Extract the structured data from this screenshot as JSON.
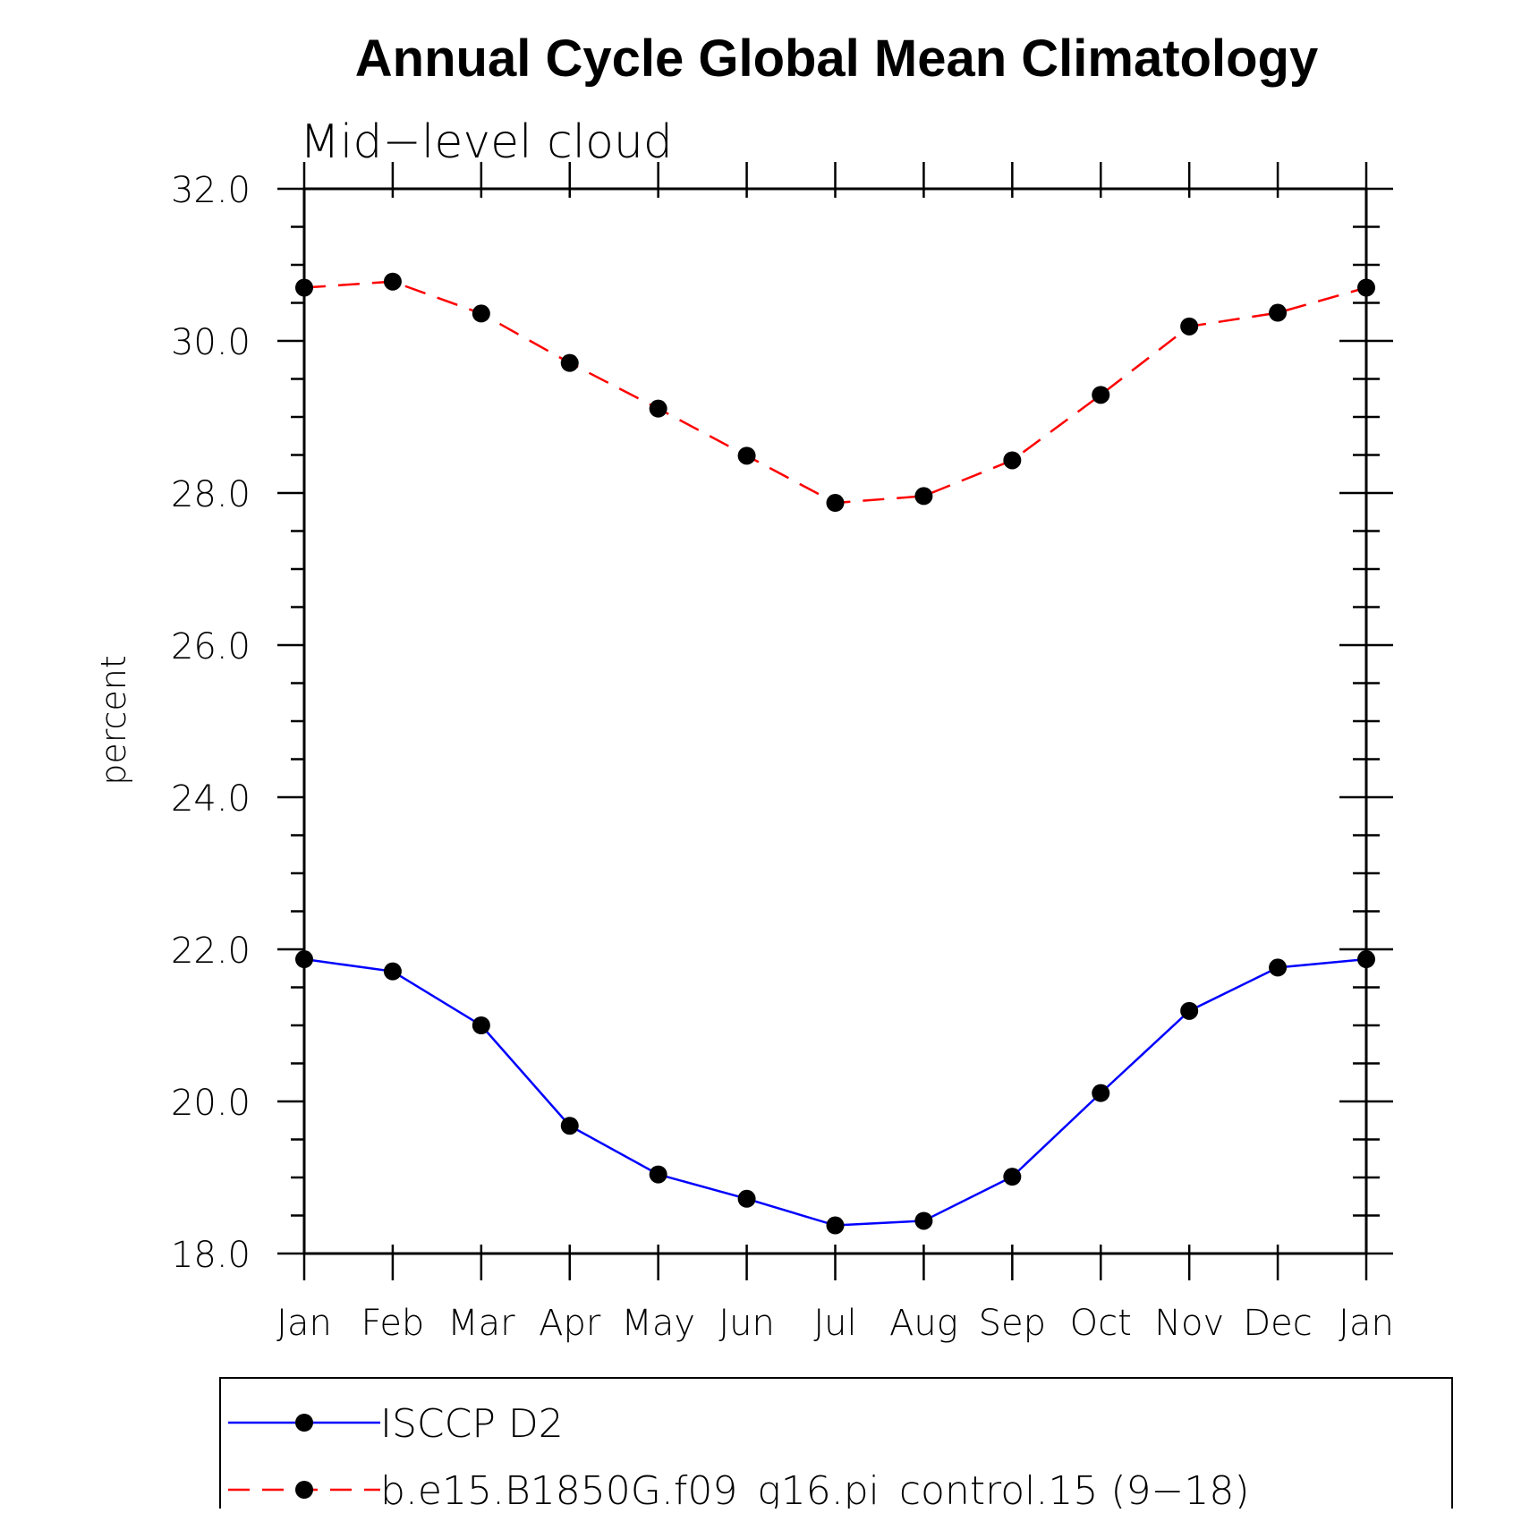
{
  "chart_data": {
    "type": "line",
    "title": "Annual Cycle Global Mean Climatology",
    "subtitle": "Mid−level cloud",
    "xlabel": "",
    "ylabel": "percent",
    "categories": [
      "Jan",
      "Feb",
      "Mar",
      "Apr",
      "May",
      "Jun",
      "Jul",
      "Aug",
      "Sep",
      "Oct",
      "Nov",
      "Dec",
      "Jan"
    ],
    "ylim": [
      18.0,
      32.0
    ],
    "yticks": [
      "18.0",
      "20.0",
      "22.0",
      "24.0",
      "26.0",
      "28.0",
      "30.0",
      "32.0"
    ],
    "grid": false,
    "legend_position": "bottom",
    "series": [
      {
        "name": "ISCCP D2",
        "color": "#0000ff",
        "dash": "solid",
        "marker": "filled-circle",
        "values": [
          21.87,
          21.71,
          21.0,
          19.68,
          19.04,
          18.72,
          18.37,
          18.43,
          19.01,
          20.11,
          21.19,
          21.76,
          21.87
        ]
      },
      {
        "name": "b.e15.B1850G.f09_g16.pi_control.15 (9−18)",
        "color": "#ff0000",
        "dash": "dashed",
        "marker": "filled-circle",
        "values": [
          30.7,
          30.78,
          30.36,
          29.71,
          29.11,
          28.49,
          27.87,
          27.96,
          28.43,
          29.29,
          30.19,
          30.37,
          30.7
        ]
      }
    ]
  }
}
